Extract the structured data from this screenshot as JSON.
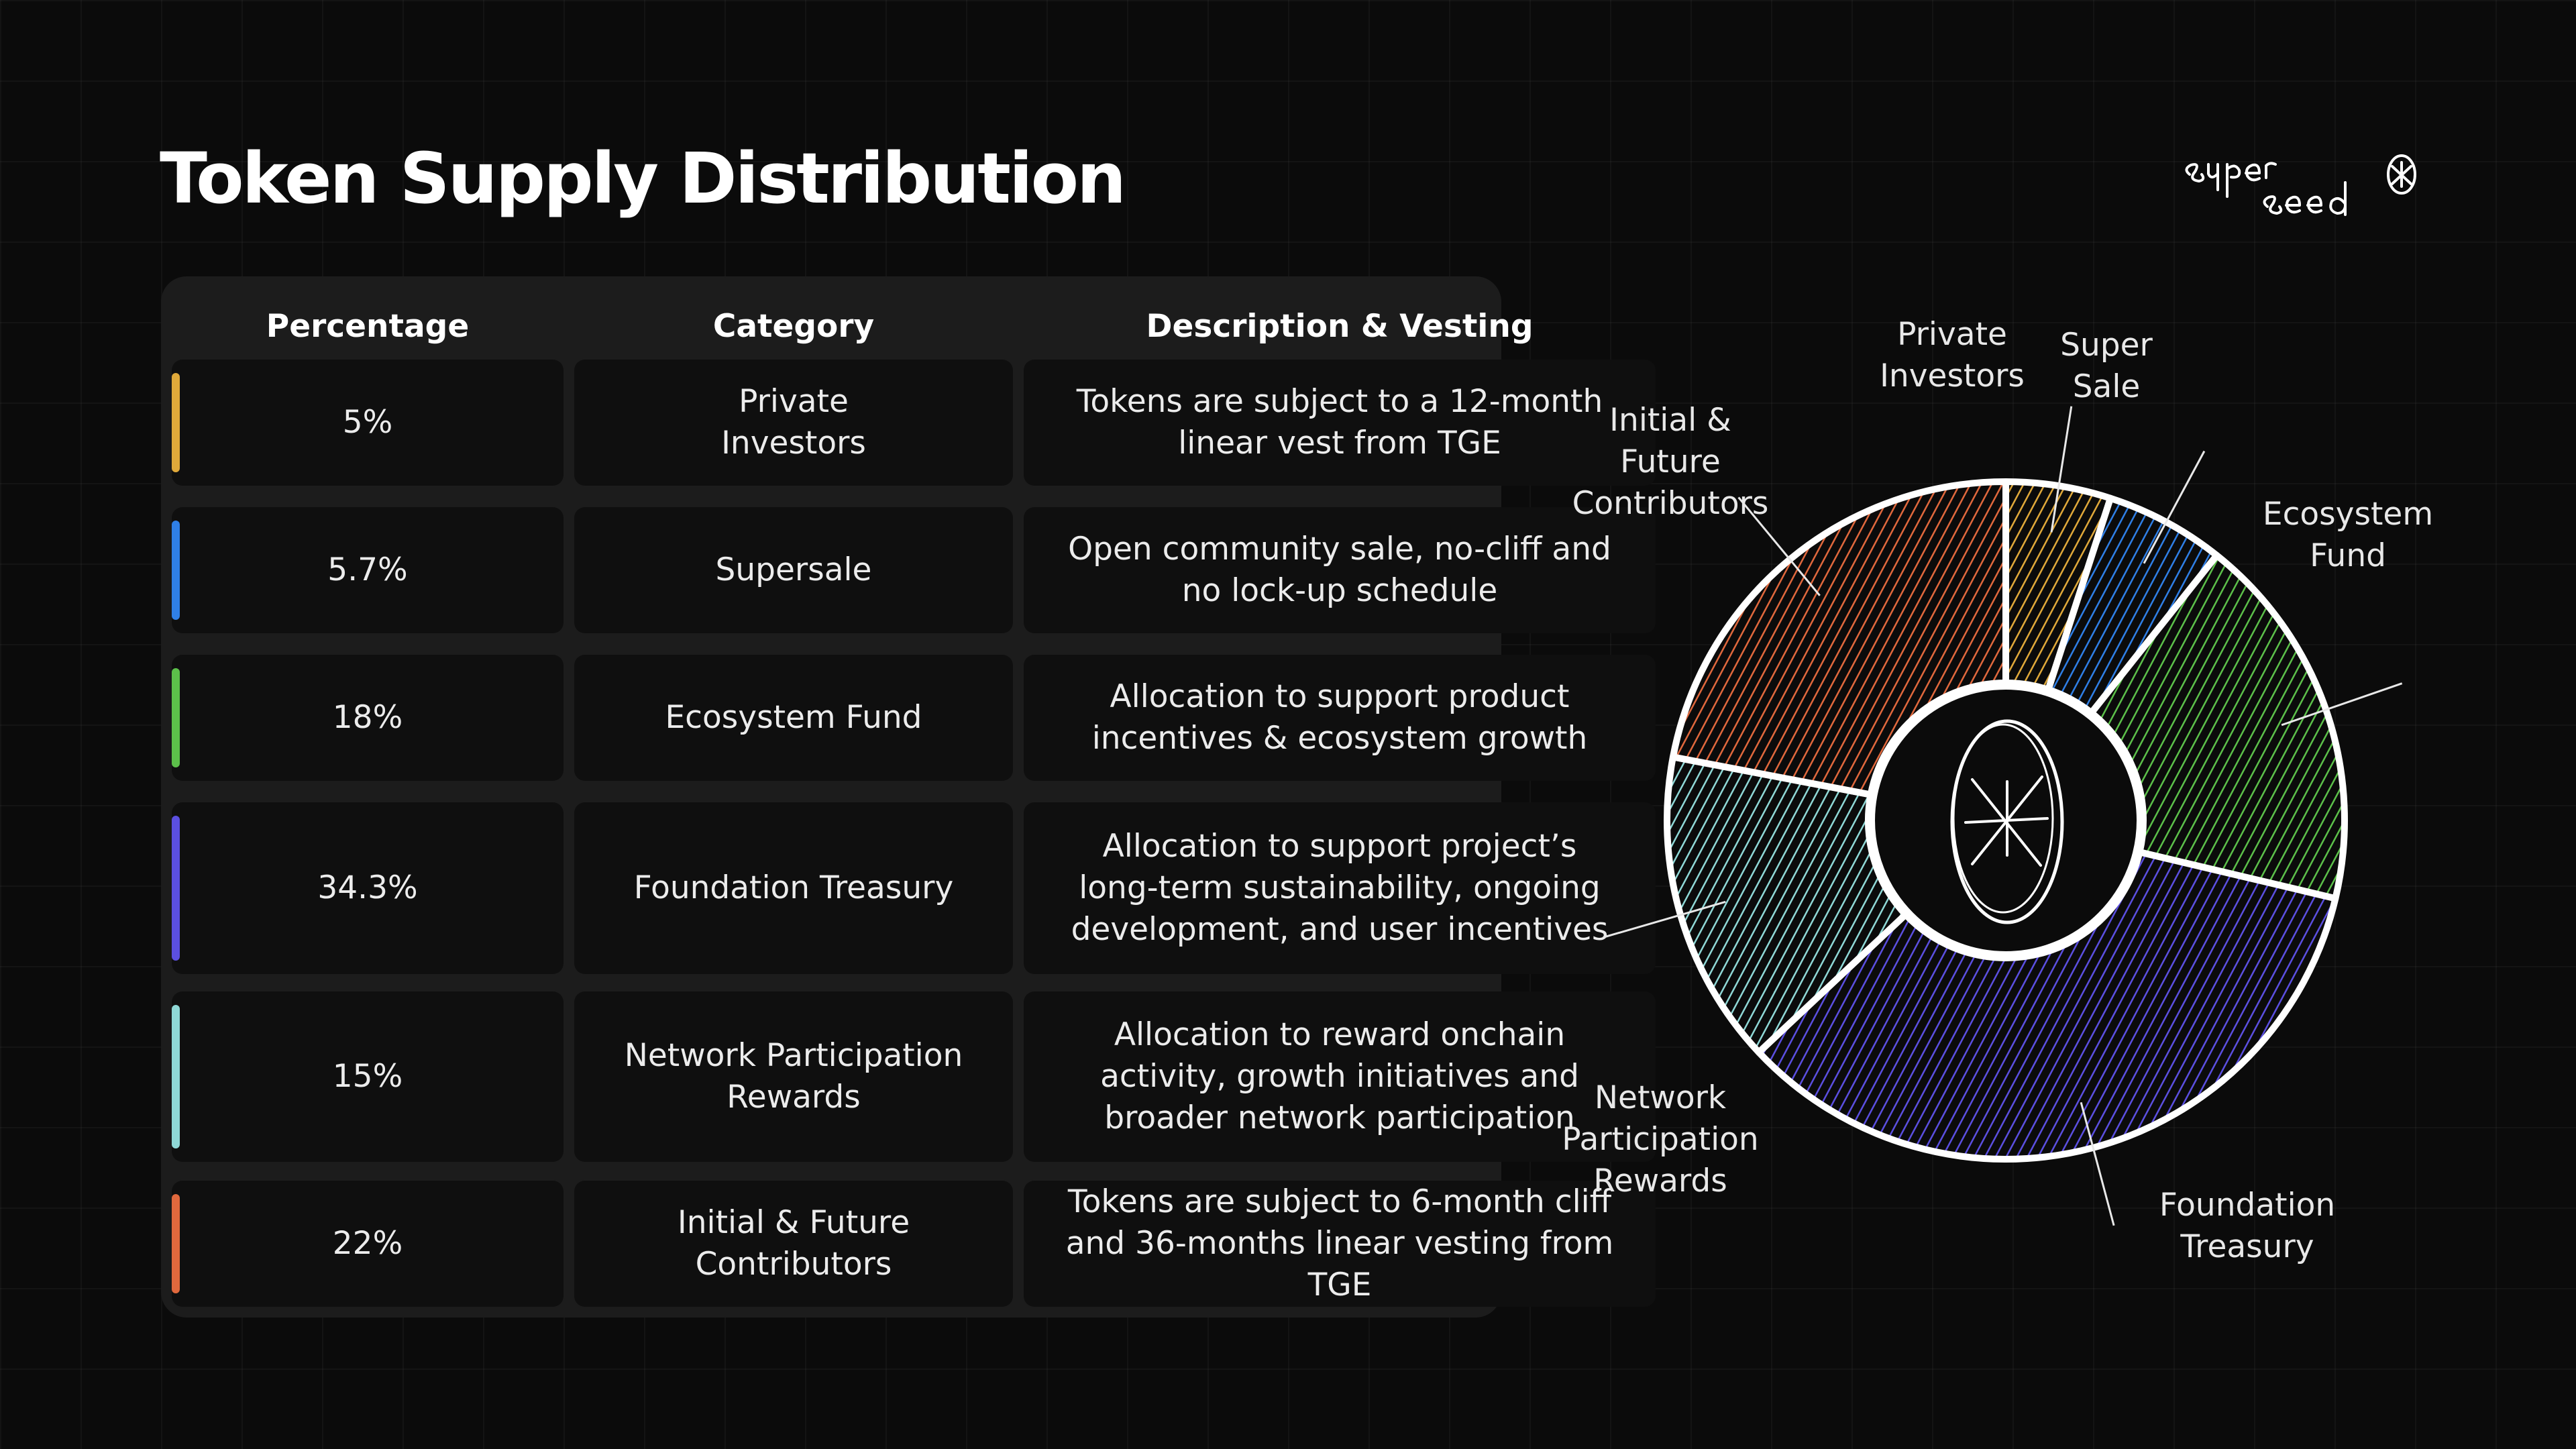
{
  "title": "Token Supply Distribution",
  "logo_text": "super seed",
  "table": {
    "headers": [
      "Percentage",
      "Category",
      "Description & Vesting"
    ],
    "rows": [
      {
        "percentage": "5%",
        "category": "Private Investors",
        "description": "Tokens are subject to a 12-month linear vest from TGE",
        "color": "#e0a93a"
      },
      {
        "percentage": "5.7%",
        "category": "Supersale",
        "description": "Open community sale, no-cliff and no lock-up schedule",
        "color": "#2f7fe6"
      },
      {
        "percentage": "18%",
        "category": "Ecosystem Fund",
        "description": "Allocation to support product incentives & ecosystem growth",
        "color": "#5cc04a"
      },
      {
        "percentage": "34.3%",
        "category": "Foundation Treasury",
        "description": "Allocation to support project’s long-term sustainability, ongoing development, and user incentives",
        "color": "#5b4fe0"
      },
      {
        "percentage": "15%",
        "category": "Network Participation Rewards",
        "description": "Allocation to reward onchain activity, growth initiatives and broader network participation",
        "color": "#8fd8d6"
      },
      {
        "percentage": "22%",
        "category": "Initial & Future Contributors",
        "description": "Tokens are subject to 6-month cliff and 36-months linear vesting from TGE",
        "color": "#e0683d"
      }
    ]
  },
  "chart_data": {
    "type": "pie",
    "style": "donut, hand-drawn hatching",
    "slices": [
      {
        "label": "Private Investors",
        "value": 5,
        "color": "#e0a93a"
      },
      {
        "label": "Super Sale",
        "value": 5.7,
        "color": "#2f7fe6"
      },
      {
        "label": "Ecosystem Fund",
        "value": 18,
        "color": "#5cc04a"
      },
      {
        "label": "Foundation Treasury",
        "value": 34.3,
        "color": "#5b4fe0"
      },
      {
        "label": "Network Participation Rewards",
        "value": 15,
        "color": "#8fd8d6"
      },
      {
        "label": "Initial & Future Contributors",
        "value": 22,
        "color": "#e0683d"
      }
    ],
    "chart_labels": {
      "private_investors": [
        "Private",
        "Investors"
      ],
      "super_sale": [
        "Super",
        "Sale"
      ],
      "ecosystem_fund": [
        "Ecosystem",
        "Fund"
      ],
      "foundation_treasury": [
        "Foundation",
        "Treasury"
      ],
      "network_rewards": [
        "Network",
        "Participation",
        "Rewards"
      ],
      "contributors": [
        "Initial &",
        "Future",
        "Contributors"
      ]
    }
  }
}
